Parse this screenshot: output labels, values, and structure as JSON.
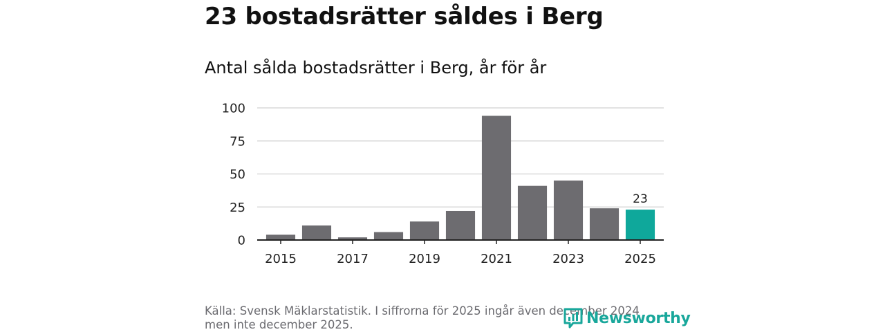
{
  "headline": "23 bostadsrätter såldes i Berg",
  "chart_data": {
    "type": "bar",
    "title": "Antal sålda bostadsrätter i Berg, år för år",
    "xlabel": "",
    "ylabel": "",
    "categories": [
      "2015",
      "2016",
      "2017",
      "2018",
      "2019",
      "2020",
      "2021",
      "2022",
      "2023",
      "2024",
      "2025"
    ],
    "values": [
      4,
      11,
      2,
      6,
      14,
      22,
      94,
      41,
      45,
      24,
      23
    ],
    "ylim": [
      0,
      100
    ],
    "yticks": [
      0,
      25,
      50,
      75,
      100
    ],
    "xtick_labels": [
      "2015",
      "2017",
      "2019",
      "2021",
      "2023",
      "2025"
    ],
    "highlight_index": 10,
    "highlight_label": "23",
    "colors": {
      "bar": "#6d6c70",
      "highlight": "#0fa89b",
      "grid": "#d9d9d9",
      "axis": "#222222"
    }
  },
  "source": "Källa: Svensk Mäklarstatistik. I siffrorna för 2025 ingår även december 2024 men inte december 2025.",
  "logo": {
    "text": "Newsworthy",
    "icon": "newsworthy-logo-icon",
    "color": "#19a79b"
  }
}
